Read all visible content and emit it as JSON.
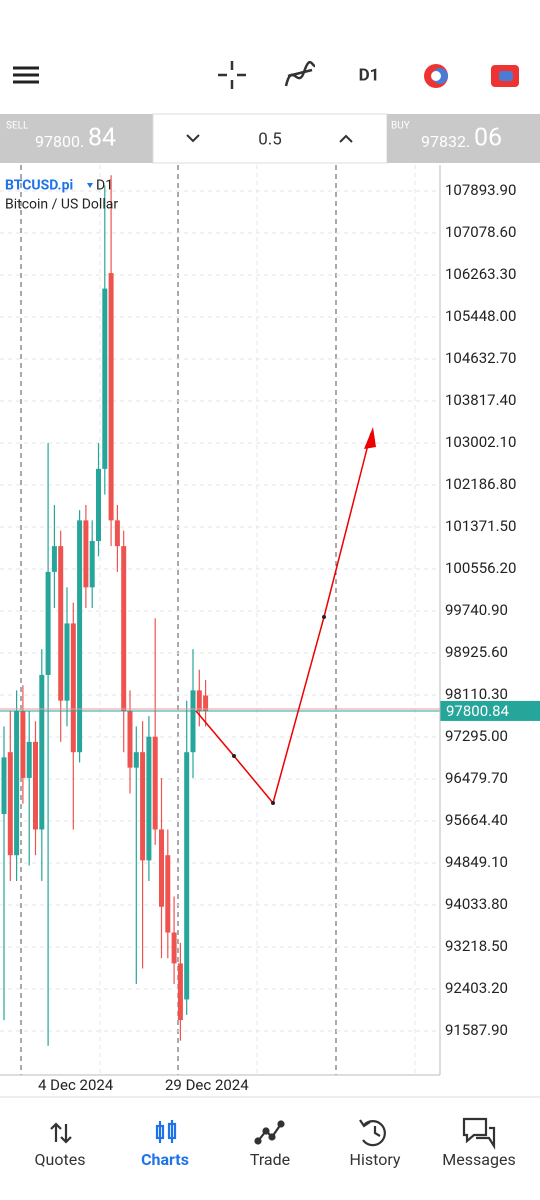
{
  "toolbar": {
    "timeframe": "D1"
  },
  "trade_bar": {
    "sell": {
      "label": "SELL",
      "price_main": "97800.",
      "price_pips": "84"
    },
    "volume": "0.5",
    "buy": {
      "label": "BUY",
      "price_main": "97832.",
      "price_pips": "06"
    }
  },
  "chart_data": {
    "type": "candlestick",
    "symbol": "BTCUSD.pi",
    "timeframe": "D1",
    "description": "Bitcoin / US Dollar",
    "x_labels": [
      "4 Dec 2024",
      "29 Dec 2024"
    ],
    "ylim": [
      90733.7,
      108398.6
    ],
    "yticks": [
      {
        "value": 107893.9,
        "label": "107893.90"
      },
      {
        "value": 107078.6,
        "label": "107078.60"
      },
      {
        "value": 106263.3,
        "label": "106263.30"
      },
      {
        "value": 105448,
        "label": "105448.00"
      },
      {
        "value": 104632.7,
        "label": "104632.70"
      },
      {
        "value": 103817.4,
        "label": "103817.40"
      },
      {
        "value": 103002.1,
        "label": "103002.10"
      },
      {
        "value": 102186.8,
        "label": "102186.80"
      },
      {
        "value": 101371.5,
        "label": "101371.50"
      },
      {
        "value": 100556.2,
        "label": "100556.20"
      },
      {
        "value": 99740.9,
        "label": "99740.90"
      },
      {
        "value": 98925.6,
        "label": "98925.60"
      },
      {
        "value": 98110.3,
        "label": "98110.30"
      },
      {
        "value": 97295,
        "label": "97295.00"
      },
      {
        "value": 96479.7,
        "label": "96479.70"
      },
      {
        "value": 95664.4,
        "label": "95664.40"
      },
      {
        "value": 94849.1,
        "label": "94849.10"
      },
      {
        "value": 94033.8,
        "label": "94033.80"
      },
      {
        "value": 93218.5,
        "label": "93218.50"
      },
      {
        "value": 92403.2,
        "label": "92403.20"
      },
      {
        "value": 91587.9,
        "label": "91587.90"
      }
    ],
    "current_price": 97800.84,
    "up_color": "#26a69a",
    "down_color": "#ef5350",
    "open": [
      95800,
      97000,
      95000,
      97800,
      96500,
      97200,
      95500,
      98500,
      100500,
      101000,
      98000,
      99500,
      97000,
      101500,
      100200,
      101100,
      102500,
      106300,
      101500,
      101000,
      97800,
      96700,
      97000,
      94900,
      97300,
      95500,
      95000,
      93500,
      92900,
      92200,
      97000,
      98200,
      98100
    ],
    "high": [
      97500,
      97800,
      98200,
      98300,
      97800,
      97600,
      99000,
      103000,
      101800,
      101300,
      100200,
      99900,
      101700,
      101800,
      101500,
      103000,
      108000,
      108200,
      101800,
      101300,
      98200,
      97500,
      97600,
      97700,
      99600,
      96500,
      95500,
      94200,
      93300,
      98000,
      99000,
      98600,
      98400
    ],
    "low": [
      91800,
      94500,
      94500,
      96000,
      94800,
      95000,
      94500,
      91300,
      99800,
      97200,
      97500,
      95500,
      96800,
      99800,
      99800,
      100800,
      102000,
      101000,
      100500,
      97000,
      96200,
      92500,
      92800,
      94500,
      95200,
      93000,
      93000,
      92500,
      91400,
      91900,
      96500,
      97500,
      97500
    ],
    "close": [
      96900,
      95000,
      97800,
      96500,
      97200,
      95500,
      98500,
      100500,
      101000,
      98000,
      99500,
      97000,
      101500,
      100200,
      101100,
      102500,
      106000,
      101500,
      101000,
      97800,
      96700,
      97000,
      94900,
      97300,
      95500,
      94000,
      93500,
      92900,
      91800,
      97000,
      98200,
      97800,
      97800
    ]
  },
  "nav": [
    "Quotes",
    "Charts",
    "Trade",
    "History",
    "Messages"
  ]
}
